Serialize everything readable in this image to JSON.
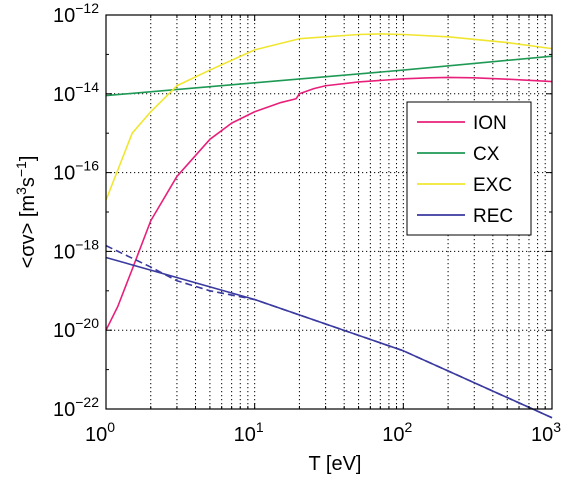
{
  "chart_data": {
    "type": "line",
    "xlabel": "T [eV]",
    "ylabel_parts": [
      "<σv> [m",
      "3",
      "s",
      "−1",
      "]"
    ],
    "x_scale": "log",
    "y_scale": "log",
    "xlim": [
      1,
      1000
    ],
    "ylim": [
      1e-22,
      1e-12
    ],
    "grid": true,
    "legend_position": "right",
    "x_ticks": [
      {
        "value": 1,
        "base": "10",
        "exp": "0"
      },
      {
        "value": 10,
        "base": "10",
        "exp": "1"
      },
      {
        "value": 100,
        "base": "10",
        "exp": "2"
      },
      {
        "value": 1000,
        "base": "10",
        "exp": "3"
      }
    ],
    "y_ticks": [
      {
        "value": 1e-22,
        "base": "10",
        "exp": "−22"
      },
      {
        "value": 1e-20,
        "base": "10",
        "exp": "−20"
      },
      {
        "value": 1e-18,
        "base": "10",
        "exp": "−18"
      },
      {
        "value": 1e-16,
        "base": "10",
        "exp": "−16"
      },
      {
        "value": 1e-14,
        "base": "10",
        "exp": "−14"
      },
      {
        "value": 1e-12,
        "base": "10",
        "exp": "−12"
      }
    ],
    "series": [
      {
        "name": "ION",
        "color": "#e8207a",
        "x": [
          1,
          1.2,
          1.5,
          2,
          3,
          5,
          7,
          10,
          15,
          19,
          20,
          25,
          30,
          50,
          100,
          150,
          200,
          300,
          500,
          700,
          1000
        ],
        "y": [
          1e-20,
          4e-20,
          3.5e-19,
          6e-18,
          8e-17,
          7e-16,
          1.8e-15,
          3.5e-15,
          6e-15,
          7.5e-15,
          1e-14,
          1.35e-14,
          1.6e-14,
          2e-14,
          2.4e-14,
          2.55e-14,
          2.6e-14,
          2.55e-14,
          2.35e-14,
          2.2e-14,
          2.05e-14
        ]
      },
      {
        "name": "CX",
        "color": "#1f9a55",
        "x": [
          1,
          10,
          100,
          1000
        ],
        "y": [
          9e-15,
          1.9e-14,
          4e-14,
          9e-14
        ]
      },
      {
        "name": "EXC",
        "color": "#f0e630",
        "x": [
          1,
          1.5,
          2,
          3,
          5,
          10,
          20,
          50,
          70,
          100,
          200,
          500,
          1000
        ],
        "y": [
          2e-17,
          1e-15,
          3.5e-15,
          1.6e-14,
          4e-14,
          1.3e-13,
          2.5e-13,
          3.2e-13,
          3.3e-13,
          3.2e-13,
          2.8e-13,
          2e-13,
          1.4e-13
        ]
      },
      {
        "name": "REC",
        "color": "#3a3aa0",
        "x": [
          1,
          10,
          100,
          1000
        ],
        "y": [
          7e-19,
          6e-20,
          3e-21,
          6e-23
        ]
      },
      {
        "name": "",
        "color": "#3a3aa0",
        "dashed": true,
        "x": [
          1,
          2,
          3,
          5,
          10,
          100,
          1000
        ],
        "y": [
          1.4e-18,
          4e-19,
          1.8e-19,
          1e-19,
          6e-20,
          3e-21,
          6e-23
        ]
      }
    ],
    "legend": [
      "ION",
      "CX",
      "EXC",
      "REC"
    ]
  }
}
